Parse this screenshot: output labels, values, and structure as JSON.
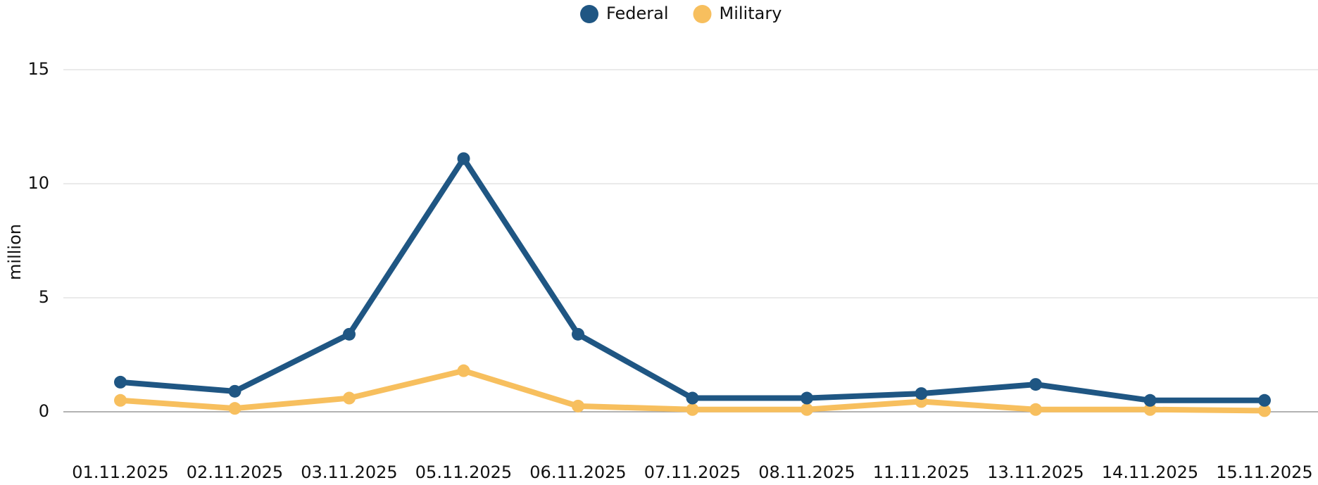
{
  "chart_data": {
    "type": "line",
    "categories": [
      "01.11.2025",
      "02.11.2025",
      "03.11.2025",
      "05.11.2025",
      "06.11.2025",
      "07.11.2025",
      "08.11.2025",
      "11.11.2025",
      "13.11.2025",
      "14.11.2025",
      "15.11.2025"
    ],
    "series": [
      {
        "name": "Federal",
        "color": "#1f5683",
        "values": [
          1.3,
          0.9,
          3.4,
          11.1,
          3.4,
          0.6,
          0.6,
          0.8,
          1.2,
          0.5,
          0.5
        ]
      },
      {
        "name": "Military",
        "color": "#f7bf5e",
        "values": [
          0.5,
          0.15,
          0.6,
          1.8,
          0.25,
          0.1,
          0.1,
          0.45,
          0.1,
          0.1,
          0.05
        ]
      }
    ],
    "y_label": "million",
    "ylim": [
      0,
      15
    ],
    "yticks": [
      0,
      5,
      10,
      15
    ],
    "grid": true,
    "legend": "top"
  }
}
